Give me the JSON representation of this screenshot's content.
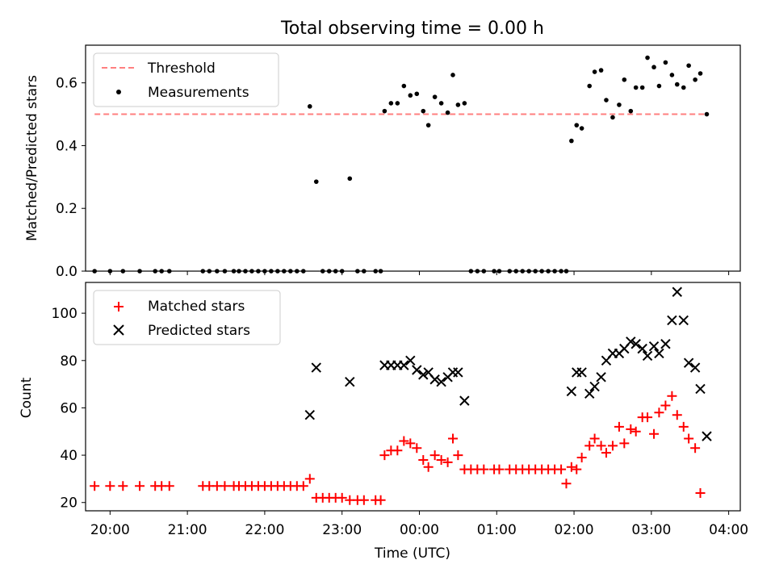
{
  "figure": {
    "title": "Total observing time = 0.00 h"
  },
  "chart_data": [
    {
      "type": "scatter",
      "panel": "top",
      "title": "Total observing time = 0.00 h",
      "xlabel": "",
      "ylabel": "Matched/Predicted stars",
      "xlim": [
        "19:41",
        "04:09"
      ],
      "ylim": [
        0,
        0.72
      ],
      "yticks": [
        0.0,
        0.2,
        0.4,
        0.6
      ],
      "ytick_labels": [
        "0.0",
        "0.2",
        "0.4",
        "0.6"
      ],
      "grid": false,
      "legend_position": "upper-left",
      "threshold": {
        "name": "Threshold",
        "value": 0.5,
        "x_start": "19:48",
        "x_end": "03:43",
        "color": "#ff7f7f",
        "style": "dashed"
      },
      "series": [
        {
          "name": "Measurements",
          "color": "#000000",
          "marker": "dot",
          "points": [
            [
              "19:48",
              0
            ],
            [
              "20:00",
              0
            ],
            [
              "20:10",
              0
            ],
            [
              "20:23",
              0
            ],
            [
              "20:35",
              0
            ],
            [
              "20:40",
              0
            ],
            [
              "20:46",
              0
            ],
            [
              "21:12",
              0
            ],
            [
              "21:17",
              0
            ],
            [
              "21:23",
              0
            ],
            [
              "21:29",
              0
            ],
            [
              "21:36",
              0
            ],
            [
              "21:40",
              0
            ],
            [
              "21:45",
              0
            ],
            [
              "21:50",
              0
            ],
            [
              "21:55",
              0
            ],
            [
              "22:00",
              0
            ],
            [
              "22:05",
              0
            ],
            [
              "22:10",
              0
            ],
            [
              "22:15",
              0
            ],
            [
              "22:20",
              0
            ],
            [
              "22:25",
              0
            ],
            [
              "22:30",
              0
            ],
            [
              "22:35",
              0.525
            ],
            [
              "22:40",
              0.285
            ],
            [
              "22:45",
              0
            ],
            [
              "22:50",
              0
            ],
            [
              "22:55",
              0
            ],
            [
              "23:00",
              0
            ],
            [
              "23:06",
              0.295
            ],
            [
              "23:12",
              0
            ],
            [
              "23:17",
              0
            ],
            [
              "23:26",
              0
            ],
            [
              "23:30",
              0
            ],
            [
              "23:33",
              0.51
            ],
            [
              "23:38",
              0.535
            ],
            [
              "23:43",
              0.535
            ],
            [
              "23:48",
              0.59
            ],
            [
              "23:53",
              0.56
            ],
            [
              "23:58",
              0.565
            ],
            [
              "00:03",
              0.51
            ],
            [
              "00:07",
              0.465
            ],
            [
              "00:12",
              0.555
            ],
            [
              "00:17",
              0.535
            ],
            [
              "00:22",
              0.505
            ],
            [
              "00:26",
              0.625
            ],
            [
              "00:30",
              0.53
            ],
            [
              "00:35",
              0.535
            ],
            [
              "00:40",
              0
            ],
            [
              "00:45",
              0
            ],
            [
              "00:50",
              0
            ],
            [
              "00:58",
              0
            ],
            [
              "01:02",
              0
            ],
            [
              "01:10",
              0
            ],
            [
              "01:15",
              0
            ],
            [
              "01:20",
              0
            ],
            [
              "01:25",
              0
            ],
            [
              "01:30",
              0
            ],
            [
              "01:35",
              0
            ],
            [
              "01:40",
              0
            ],
            [
              "01:45",
              0
            ],
            [
              "01:50",
              0
            ],
            [
              "01:54",
              0
            ],
            [
              "01:58",
              0.415
            ],
            [
              "02:02",
              0.465
            ],
            [
              "02:06",
              0.455
            ],
            [
              "02:12",
              0.59
            ],
            [
              "02:16",
              0.635
            ],
            [
              "02:21",
              0.64
            ],
            [
              "02:25",
              0.545
            ],
            [
              "02:30",
              0.49
            ],
            [
              "02:35",
              0.53
            ],
            [
              "02:39",
              0.61
            ],
            [
              "02:44",
              0.51
            ],
            [
              "02:48",
              0.585
            ],
            [
              "02:53",
              0.585
            ],
            [
              "02:57",
              0.68
            ],
            [
              "03:02",
              0.65
            ],
            [
              "03:06",
              0.59
            ],
            [
              "03:11",
              0.665
            ],
            [
              "03:16",
              0.625
            ],
            [
              "03:20",
              0.595
            ],
            [
              "03:25",
              0.585
            ],
            [
              "03:29",
              0.655
            ],
            [
              "03:34",
              0.61
            ],
            [
              "03:38",
              0.63
            ],
            [
              "03:43",
              0.5
            ]
          ]
        }
      ]
    },
    {
      "type": "scatter",
      "panel": "bottom",
      "xlabel": "Time (UTC)",
      "ylabel": "Count",
      "xlim": [
        "19:41",
        "04:09"
      ],
      "ylim": [
        16.5,
        113
      ],
      "xticks": [
        "20:00",
        "21:00",
        "22:00",
        "23:00",
        "00:00",
        "01:00",
        "02:00",
        "03:00",
        "04:00"
      ],
      "yticks": [
        20,
        40,
        60,
        80,
        100
      ],
      "ytick_labels": [
        "20",
        "40",
        "60",
        "80",
        "100"
      ],
      "grid": false,
      "legend_position": "upper-left",
      "series": [
        {
          "name": "Matched stars",
          "color": "#ff0000",
          "marker": "plus",
          "points": [
            [
              "19:48",
              27
            ],
            [
              "20:00",
              27
            ],
            [
              "20:10",
              27
            ],
            [
              "20:23",
              27
            ],
            [
              "20:35",
              27
            ],
            [
              "20:40",
              27
            ],
            [
              "20:46",
              27
            ],
            [
              "21:12",
              27
            ],
            [
              "21:17",
              27
            ],
            [
              "21:23",
              27
            ],
            [
              "21:29",
              27
            ],
            [
              "21:36",
              27
            ],
            [
              "21:40",
              27
            ],
            [
              "21:45",
              27
            ],
            [
              "21:50",
              27
            ],
            [
              "21:55",
              27
            ],
            [
              "22:00",
              27
            ],
            [
              "22:05",
              27
            ],
            [
              "22:10",
              27
            ],
            [
              "22:15",
              27
            ],
            [
              "22:20",
              27
            ],
            [
              "22:25",
              27
            ],
            [
              "22:30",
              27
            ],
            [
              "22:35",
              30
            ],
            [
              "22:40",
              22
            ],
            [
              "22:45",
              22
            ],
            [
              "22:50",
              22
            ],
            [
              "22:55",
              22
            ],
            [
              "23:00",
              22
            ],
            [
              "23:06",
              21
            ],
            [
              "23:12",
              21
            ],
            [
              "23:17",
              21
            ],
            [
              "23:26",
              21
            ],
            [
              "23:30",
              21
            ],
            [
              "23:33",
              40
            ],
            [
              "23:38",
              42
            ],
            [
              "23:43",
              42
            ],
            [
              "23:48",
              46
            ],
            [
              "23:53",
              45
            ],
            [
              "23:58",
              43
            ],
            [
              "00:03",
              38
            ],
            [
              "00:07",
              35
            ],
            [
              "00:12",
              40
            ],
            [
              "00:17",
              38
            ],
            [
              "00:22",
              37
            ],
            [
              "00:26",
              47
            ],
            [
              "00:30",
              40
            ],
            [
              "00:35",
              34
            ],
            [
              "00:40",
              34
            ],
            [
              "00:45",
              34
            ],
            [
              "00:50",
              34
            ],
            [
              "00:58",
              34
            ],
            [
              "01:02",
              34
            ],
            [
              "01:10",
              34
            ],
            [
              "01:15",
              34
            ],
            [
              "01:20",
              34
            ],
            [
              "01:25",
              34
            ],
            [
              "01:30",
              34
            ],
            [
              "01:35",
              34
            ],
            [
              "01:40",
              34
            ],
            [
              "01:45",
              34
            ],
            [
              "01:50",
              34
            ],
            [
              "01:54",
              28
            ],
            [
              "01:58",
              35
            ],
            [
              "02:02",
              34
            ],
            [
              "02:06",
              39
            ],
            [
              "02:12",
              44
            ],
            [
              "02:16",
              47
            ],
            [
              "02:21",
              44
            ],
            [
              "02:25",
              41
            ],
            [
              "02:30",
              44
            ],
            [
              "02:35",
              52
            ],
            [
              "02:39",
              45
            ],
            [
              "02:44",
              51
            ],
            [
              "02:48",
              50
            ],
            [
              "02:53",
              56
            ],
            [
              "02:57",
              56
            ],
            [
              "03:02",
              49
            ],
            [
              "03:06",
              58
            ],
            [
              "03:11",
              61
            ],
            [
              "03:16",
              65
            ],
            [
              "03:20",
              57
            ],
            [
              "03:25",
              52
            ],
            [
              "03:29",
              47
            ],
            [
              "03:34",
              43
            ],
            [
              "03:38",
              24
            ]
          ]
        },
        {
          "name": "Predicted stars",
          "color": "#000000",
          "marker": "x",
          "points": [
            [
              "22:35",
              57
            ],
            [
              "22:40",
              77
            ],
            [
              "23:06",
              71
            ],
            [
              "23:33",
              78
            ],
            [
              "23:38",
              78
            ],
            [
              "23:43",
              78
            ],
            [
              "23:48",
              78
            ],
            [
              "23:53",
              80
            ],
            [
              "23:58",
              76
            ],
            [
              "00:03",
              74
            ],
            [
              "00:07",
              75
            ],
            [
              "00:12",
              72
            ],
            [
              "00:17",
              71
            ],
            [
              "00:22",
              73
            ],
            [
              "00:26",
              75
            ],
            [
              "00:30",
              75
            ],
            [
              "00:35",
              63
            ],
            [
              "01:58",
              67
            ],
            [
              "02:02",
              75
            ],
            [
              "02:06",
              75
            ],
            [
              "02:12",
              66
            ],
            [
              "02:16",
              69
            ],
            [
              "02:21",
              73
            ],
            [
              "02:25",
              80
            ],
            [
              "02:30",
              83
            ],
            [
              "02:35",
              83
            ],
            [
              "02:39",
              85
            ],
            [
              "02:44",
              88
            ],
            [
              "02:48",
              87
            ],
            [
              "02:53",
              85
            ],
            [
              "02:57",
              82
            ],
            [
              "03:02",
              86
            ],
            [
              "03:06",
              83
            ],
            [
              "03:11",
              87
            ],
            [
              "03:16",
              97
            ],
            [
              "03:20",
              109
            ],
            [
              "03:25",
              97
            ],
            [
              "03:29",
              79
            ],
            [
              "03:34",
              77
            ],
            [
              "03:38",
              68
            ],
            [
              "03:43",
              48
            ]
          ]
        }
      ]
    }
  ]
}
